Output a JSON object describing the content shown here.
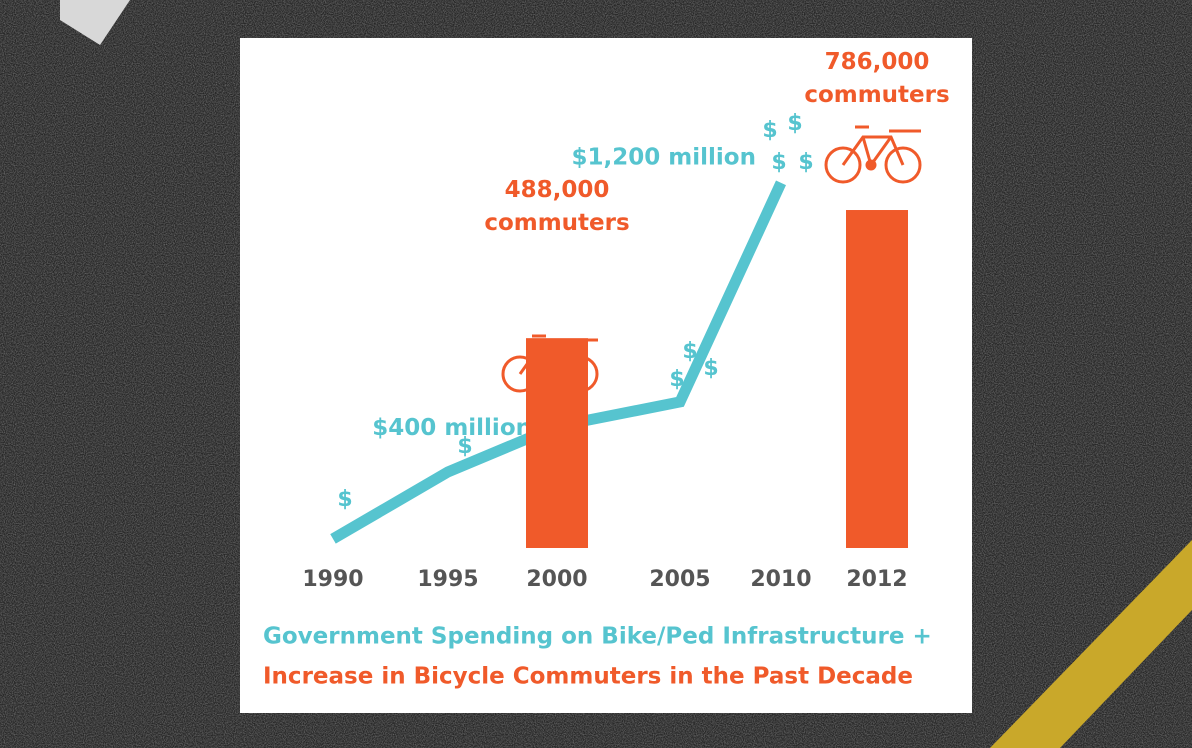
{
  "chart_data": {
    "type": "combo",
    "title": "Government Spending on Bike/Ped Infrastructure +",
    "subtitle": "Increase in Bicycle Commuters in the Past Decade",
    "categories": [
      "1990",
      "1995",
      "2000",
      "2005",
      "2010",
      "2012"
    ],
    "series": [
      {
        "type": "line",
        "axis": "y2",
        "color": "#56c4cf",
        "values": [
          30,
          250,
          400,
          480,
          1200,
          null
        ],
        "value_labels": [
          null,
          null,
          "$400 million",
          null,
          "$1,200 million",
          null
        ]
      },
      {
        "type": "bar",
        "axis": "y",
        "color": "#f05a2a",
        "values": [
          null,
          null,
          488000,
          null,
          null,
          786000
        ],
        "value_labels": [
          null,
          null,
          "488,000 commuters",
          null,
          null,
          "786,000 commuters"
        ]
      }
    ],
    "annotations": [
      "$",
      "$",
      "$",
      "$",
      "$",
      "$",
      "$",
      "$",
      "$"
    ],
    "ylim": [
      0,
      900000
    ],
    "y2lim": [
      0,
      1400
    ]
  }
}
